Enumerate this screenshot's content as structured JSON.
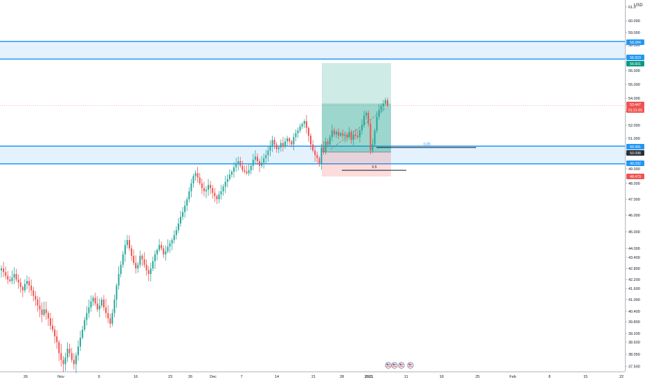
{
  "chart_data": {
    "type": "candlestick",
    "currency": "USD",
    "y_axis": {
      "ticks": [
        37.5,
        38.05,
        38.6,
        39.2,
        39.8,
        40.4,
        41.0,
        41.6,
        42.2,
        42.8,
        43.4,
        44.0,
        45.0,
        46.0,
        47.0,
        48.0,
        49.0,
        50.0,
        51.0,
        52.0,
        53.0,
        54.0,
        55.0,
        56.0,
        57.0,
        58.0,
        59.0,
        60.0,
        61.0
      ],
      "tick_labels": [
        "37.500",
        "38.050",
        "38.600",
        "39.200",
        "39.800",
        "40.400",
        "41.000",
        "41.600",
        "42.200",
        "42.800",
        "43.400",
        "44.000",
        "45.000",
        "46.000",
        "47.000",
        "48.000",
        "49.000",
        "50.000",
        "51.000",
        "52.000",
        "53.000",
        "54.000",
        "55.000",
        "56.000",
        "57.000",
        "58.000",
        "59.000",
        "60.000",
        "61.0"
      ]
    },
    "x_axis": {
      "tick_labels": [
        "26",
        "Nov",
        "9",
        "16",
        "23",
        "26",
        "Dec",
        "7",
        "14",
        "21",
        "28",
        "2021",
        "11",
        "18",
        "25",
        "Feb",
        "8",
        "15",
        "22"
      ],
      "tick_dates": [
        "2020-10-26",
        "2020-11-02",
        "2020-11-09",
        "2020-11-16",
        "2020-11-23",
        "2020-11-26",
        "2020-12-01",
        "2020-12-07",
        "2020-12-14",
        "2020-12-21",
        "2020-12-28",
        "2021-01-04",
        "2021-01-11",
        "2021-01-18",
        "2021-01-25",
        "2021-02-01",
        "2021-02-08",
        "2021-02-15",
        "2021-02-22"
      ]
    },
    "candles_close": [
      42.8,
      42.6,
      42.4,
      42.2,
      42.1,
      42.3,
      42.5,
      42.2,
      42.0,
      41.7,
      41.5,
      41.9,
      42.1,
      41.8,
      41.5,
      41.2,
      41.0,
      40.7,
      40.5,
      40.2,
      40.5,
      40.3,
      40.0,
      39.6,
      39.4,
      39.0,
      38.6,
      38.1,
      37.8,
      37.6,
      37.9,
      38.3,
      38.1,
      37.8,
      37.6,
      38.0,
      38.4,
      38.9,
      39.4,
      39.9,
      40.3,
      40.6,
      40.9,
      41.1,
      40.8,
      40.5,
      40.7,
      41.0,
      40.6,
      40.3,
      40.0,
      39.7,
      40.3,
      41.0,
      41.8,
      42.5,
      43.0,
      43.6,
      44.2,
      44.5,
      44.0,
      43.5,
      43.1,
      42.8,
      43.0,
      43.5,
      43.3,
      43.0,
      42.7,
      42.5,
      42.8,
      43.2,
      43.6,
      43.9,
      44.2,
      44.0,
      43.6,
      43.8,
      44.1,
      44.3,
      44.5,
      44.8,
      45.1,
      45.5,
      45.9,
      46.2,
      46.6,
      47.0,
      47.5,
      48.0,
      48.5,
      48.7,
      48.4,
      48.0,
      47.7,
      47.5,
      47.6,
      47.9,
      47.7,
      47.4,
      47.2,
      47.0,
      47.3,
      47.5,
      47.8,
      48.1,
      48.3,
      48.6,
      48.8,
      49.1,
      49.3,
      49.5,
      49.2,
      48.9,
      48.8,
      48.7,
      48.9,
      49.2,
      49.6,
      49.8,
      49.5,
      49.2,
      49.4,
      49.7,
      49.9,
      50.2,
      50.5,
      50.9,
      50.6,
      50.3,
      50.4,
      50.7,
      50.5,
      50.8,
      51.0,
      50.8,
      50.6,
      51.1,
      51.4,
      51.6,
      51.9,
      52.1,
      52.3,
      51.8,
      51.2,
      50.6,
      50.2,
      49.9,
      49.7,
      49.3,
      50.4,
      50.1,
      50.8,
      50.6,
      51.1,
      51.6,
      51.3,
      51.5,
      51.2,
      51.4,
      51.2,
      51.3,
      51.1,
      51.5,
      50.9,
      51.3,
      51.2,
      51.1,
      51.6,
      52.0,
      52.7,
      52.9,
      52.1,
      50.2,
      50.6,
      51.6,
      52.6,
      53.1,
      53.4,
      53.6,
      53.85,
      53.45
    ],
    "current_price": 53.447,
    "price_levels": [
      {
        "label": "58.284",
        "value": 58.284,
        "color": "#2196f3"
      },
      {
        "label": "56.923",
        "value": 56.923,
        "color": "#2196f3"
      },
      {
        "label": "56.601",
        "value": 56.601,
        "color": "#089981"
      },
      {
        "label": "53.447",
        "value": 53.447,
        "color": "#ef5350"
      },
      {
        "label": "01:21:05",
        "color": "#ef5350"
      },
      {
        "label": "50.491",
        "value": 50.491,
        "color": "#2196f3"
      },
      {
        "label": "50.098",
        "value": 50.098,
        "color": "#2a2e39"
      },
      {
        "label": "49.332",
        "value": 49.332,
        "color": "#2196f3"
      },
      {
        "label": "48.473",
        "value": 48.473,
        "color": "#ef5350"
      }
    ],
    "zones": [
      {
        "name": "upper-zone",
        "top": 58.284,
        "bottom": 56.923
      },
      {
        "name": "lower-zone",
        "top": 50.491,
        "bottom": 49.332
      }
    ],
    "position_tool": {
      "entry": 50.098,
      "target": 56.601,
      "stop": 48.473
    },
    "fib_labels": [
      "0.25",
      "0.5"
    ],
    "fib_levels": [
      50.4,
      48.9
    ],
    "colors": {
      "up": "#26a69a",
      "down": "#ef5350",
      "zone": "#2196f3",
      "axis_text": "#131722"
    }
  }
}
